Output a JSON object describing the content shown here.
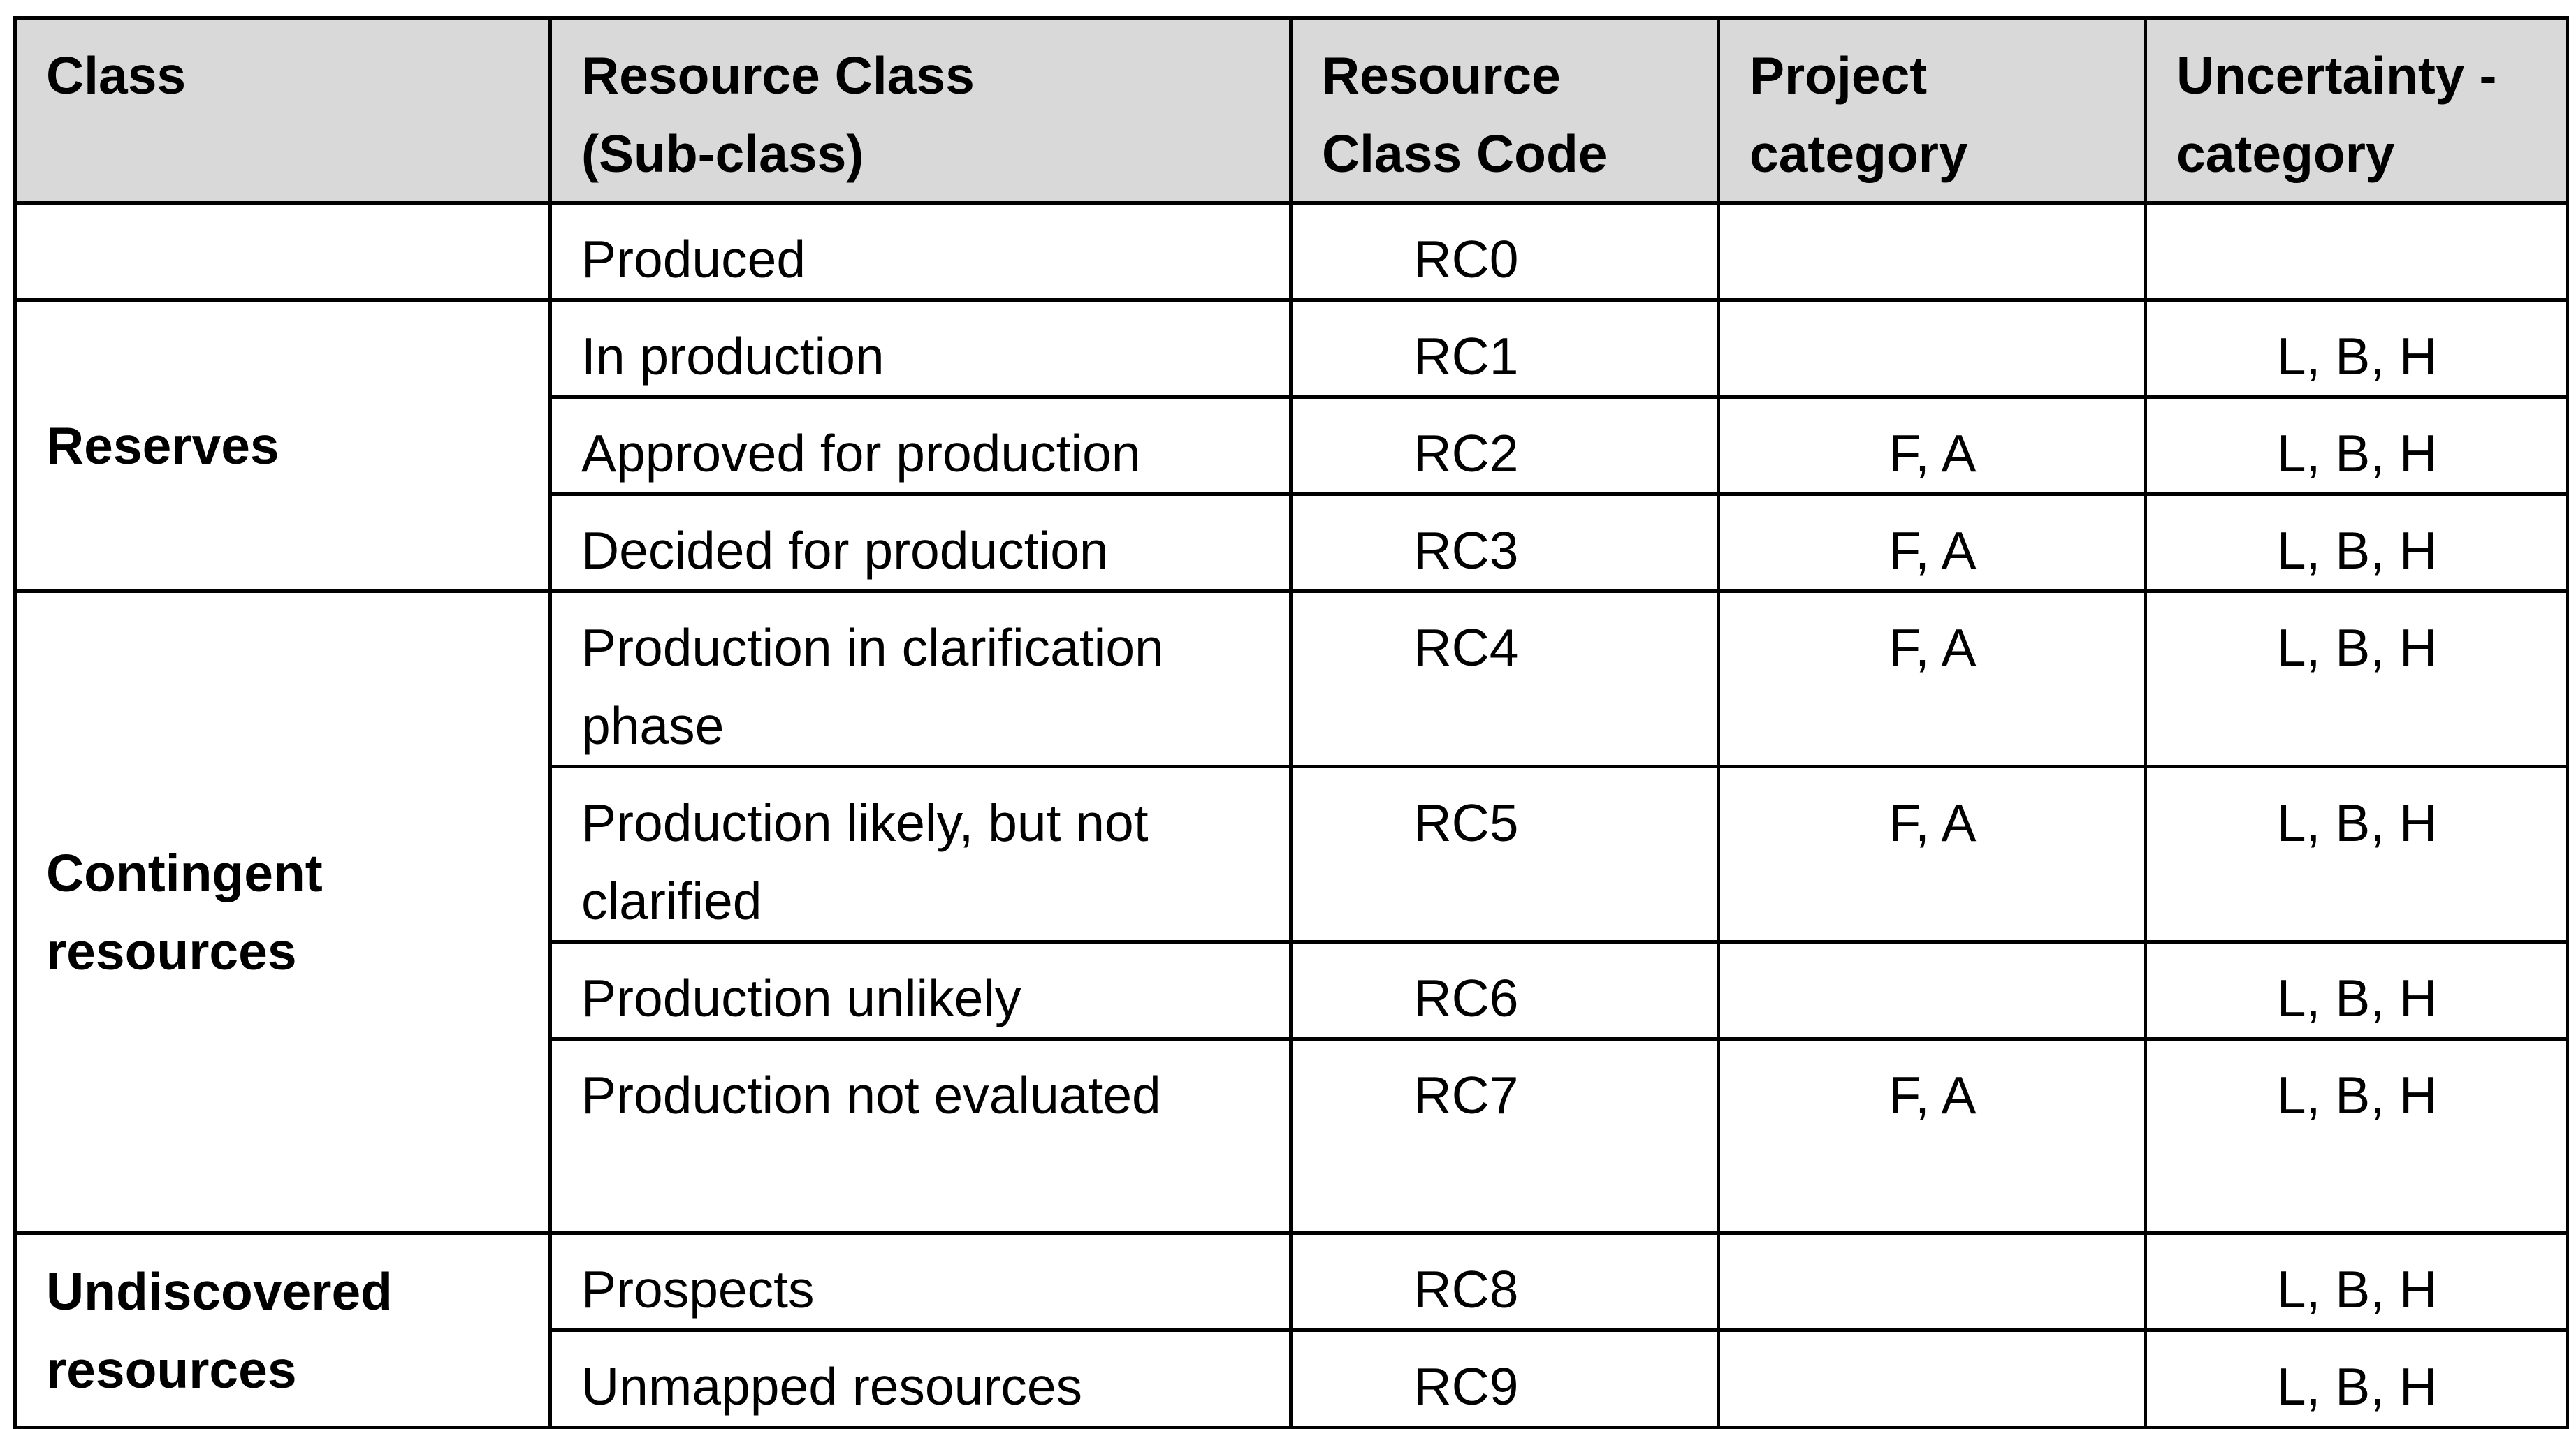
{
  "table": {
    "headers": {
      "class": "Class",
      "resource_class_line1": "Resource Class",
      "resource_class_line2": "(Sub-class)",
      "code_line1": "Resource",
      "code_line2": "Class Code",
      "project_line1": "Project",
      "project_line2": "category",
      "uncertainty_line1": "Uncertainty -",
      "uncertainty_line2": "category"
    },
    "groups": {
      "reserves": "Reserves",
      "contingent_line1": "Contingent",
      "contingent_line2": "resources",
      "undiscovered_line1": "Undiscovered",
      "undiscovered_line2": "resources"
    },
    "rows": [
      {
        "subclass": "Produced",
        "code": "RC0",
        "project": "",
        "uncertainty": ""
      },
      {
        "subclass": "In production",
        "code": "RC1",
        "project": "",
        "uncertainty": "L, B, H"
      },
      {
        "subclass": "Approved for production",
        "code": "RC2",
        "project": "F, A",
        "uncertainty": "L, B, H"
      },
      {
        "subclass": "Decided for production",
        "code": "RC3",
        "project": "F, A",
        "uncertainty": "L, B, H"
      },
      {
        "subclass": "Production in clarification phase",
        "code": "RC4",
        "project": "F, A",
        "uncertainty": "L, B, H"
      },
      {
        "subclass": "Production likely, but not clarified",
        "code": "RC5",
        "project": "F, A",
        "uncertainty": "L, B, H"
      },
      {
        "subclass": "Production unlikely",
        "code": "RC6",
        "project": "",
        "uncertainty": "L, B, H"
      },
      {
        "subclass": "Production not evaluated",
        "code": "RC7",
        "project": "F, A",
        "uncertainty": "L, B, H"
      },
      {
        "subclass": "Prospects",
        "code": "RC8",
        "project": "",
        "uncertainty": "L, B, H"
      },
      {
        "subclass": "Unmapped resources",
        "code": "RC9",
        "project": "",
        "uncertainty": "L, B, H"
      }
    ]
  }
}
